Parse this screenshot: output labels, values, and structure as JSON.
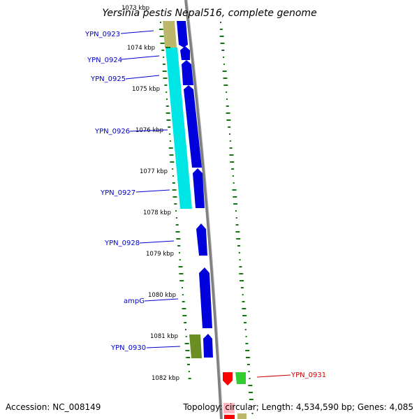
{
  "title": "Yersinia pestis Nepal516, complete genome",
  "accession": "Accession: NC_008149",
  "topology": "Topology: circular; Length: 4,534,590 bp; Genes: 4,085",
  "ticks": [
    "1073 kbp",
    "1074 kbp",
    "1075 kbp",
    "1076 kbp",
    "1077 kbp",
    "1078 kbp",
    "1079 kbp",
    "1080 kbp",
    "1081 kbp",
    "1082 kbp"
  ],
  "genes": [
    {
      "name": "YPN_0923",
      "color": "#0000cc"
    },
    {
      "name": "YPN_0924",
      "color": "#0000cc"
    },
    {
      "name": "YPN_0925",
      "color": "#0000cc"
    },
    {
      "name": "YPN_0926",
      "color": "#0000cc"
    },
    {
      "name": "YPN_0927",
      "color": "#0000cc"
    },
    {
      "name": "YPN_0928",
      "color": "#0000cc"
    },
    {
      "name": "ampG",
      "color": "#0000cc"
    },
    {
      "name": "YPN_0930",
      "color": "#0000cc"
    },
    {
      "name": "YPN_0931",
      "color": "#cc0000"
    }
  ],
  "colors": {
    "forward_cds": "#0000dd",
    "reverse_cds": "#ff0000",
    "operon_cyan": "#00e5e5",
    "operon_khaki": "#bdb76b",
    "olive": "#6b8e23",
    "green": "#33cc33",
    "backbone": "#808080",
    "gc_skew": "#117711"
  }
}
